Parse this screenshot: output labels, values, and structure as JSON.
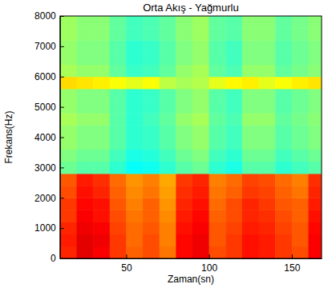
{
  "chart_data": {
    "type": "heatmap",
    "title": "Orta Akış - Yağmurlu",
    "x_label": "Zaman(sn)",
    "y_label": "Frekans(Hz)",
    "xlim": [
      10,
      168
    ],
    "xticks": [
      50,
      100,
      150
    ],
    "ylim": [
      0,
      8000
    ],
    "yticks": [
      0,
      1000,
      2000,
      3000,
      4000,
      5000,
      6000,
      7000,
      8000
    ],
    "x_edges": [
      10,
      20,
      30,
      40,
      50,
      60,
      70,
      80,
      90,
      100,
      110,
      120,
      130,
      140,
      150,
      160,
      168
    ],
    "y_edges": [
      0,
      400,
      800,
      1200,
      1600,
      2000,
      2400,
      2800,
      3200,
      3600,
      4000,
      4400,
      4800,
      5200,
      5600,
      6000,
      6400,
      6800,
      7200,
      7600,
      8000
    ],
    "zlim": [
      0,
      1
    ],
    "z": [
      [
        0.84,
        0.9,
        0.88,
        0.82,
        0.78,
        0.8,
        0.76,
        0.87,
        0.89,
        0.8,
        0.82,
        0.86,
        0.85,
        0.82,
        0.8,
        0.88
      ],
      [
        0.85,
        0.9,
        0.89,
        0.82,
        0.77,
        0.8,
        0.75,
        0.87,
        0.89,
        0.79,
        0.82,
        0.86,
        0.85,
        0.82,
        0.79,
        0.88
      ],
      [
        0.84,
        0.89,
        0.88,
        0.81,
        0.77,
        0.79,
        0.75,
        0.86,
        0.88,
        0.79,
        0.81,
        0.85,
        0.84,
        0.81,
        0.79,
        0.87
      ],
      [
        0.82,
        0.88,
        0.86,
        0.8,
        0.76,
        0.78,
        0.74,
        0.85,
        0.87,
        0.78,
        0.8,
        0.84,
        0.83,
        0.8,
        0.78,
        0.86
      ],
      [
        0.82,
        0.87,
        0.86,
        0.79,
        0.75,
        0.78,
        0.73,
        0.84,
        0.86,
        0.77,
        0.8,
        0.84,
        0.82,
        0.79,
        0.78,
        0.85
      ],
      [
        0.8,
        0.86,
        0.84,
        0.78,
        0.74,
        0.76,
        0.72,
        0.83,
        0.85,
        0.76,
        0.78,
        0.82,
        0.81,
        0.78,
        0.76,
        0.84
      ],
      [
        0.79,
        0.85,
        0.83,
        0.77,
        0.73,
        0.75,
        0.71,
        0.82,
        0.84,
        0.75,
        0.77,
        0.81,
        0.8,
        0.77,
        0.75,
        0.83
      ],
      [
        0.48,
        0.46,
        0.46,
        0.42,
        0.38,
        0.39,
        0.42,
        0.46,
        0.48,
        0.42,
        0.4,
        0.46,
        0.46,
        0.42,
        0.44,
        0.46
      ],
      [
        0.5,
        0.48,
        0.48,
        0.44,
        0.4,
        0.41,
        0.44,
        0.48,
        0.5,
        0.44,
        0.42,
        0.48,
        0.48,
        0.44,
        0.46,
        0.48
      ],
      [
        0.52,
        0.5,
        0.5,
        0.46,
        0.42,
        0.43,
        0.46,
        0.5,
        0.52,
        0.46,
        0.44,
        0.5,
        0.5,
        0.46,
        0.48,
        0.5
      ],
      [
        0.52,
        0.5,
        0.5,
        0.46,
        0.42,
        0.43,
        0.46,
        0.5,
        0.52,
        0.46,
        0.44,
        0.5,
        0.5,
        0.46,
        0.48,
        0.5
      ],
      [
        0.54,
        0.52,
        0.52,
        0.46,
        0.42,
        0.44,
        0.47,
        0.52,
        0.54,
        0.47,
        0.45,
        0.52,
        0.52,
        0.47,
        0.49,
        0.51
      ],
      [
        0.52,
        0.5,
        0.5,
        0.46,
        0.42,
        0.43,
        0.46,
        0.5,
        0.52,
        0.46,
        0.44,
        0.5,
        0.5,
        0.46,
        0.48,
        0.5
      ],
      [
        0.52,
        0.5,
        0.5,
        0.46,
        0.42,
        0.43,
        0.46,
        0.5,
        0.52,
        0.46,
        0.44,
        0.5,
        0.5,
        0.46,
        0.48,
        0.5
      ],
      [
        0.66,
        0.65,
        0.64,
        0.62,
        0.6,
        0.62,
        0.56,
        0.54,
        0.55,
        0.6,
        0.63,
        0.64,
        0.6,
        0.62,
        0.64,
        0.65
      ],
      [
        0.54,
        0.52,
        0.52,
        0.47,
        0.43,
        0.44,
        0.47,
        0.52,
        0.54,
        0.47,
        0.45,
        0.52,
        0.52,
        0.47,
        0.49,
        0.51
      ],
      [
        0.52,
        0.5,
        0.5,
        0.46,
        0.42,
        0.43,
        0.46,
        0.5,
        0.52,
        0.46,
        0.44,
        0.5,
        0.5,
        0.46,
        0.48,
        0.5
      ],
      [
        0.52,
        0.5,
        0.5,
        0.46,
        0.42,
        0.43,
        0.46,
        0.5,
        0.52,
        0.46,
        0.44,
        0.5,
        0.5,
        0.46,
        0.48,
        0.5
      ],
      [
        0.53,
        0.51,
        0.51,
        0.47,
        0.44,
        0.45,
        0.47,
        0.51,
        0.53,
        0.47,
        0.46,
        0.51,
        0.51,
        0.47,
        0.49,
        0.51
      ],
      [
        0.53,
        0.51,
        0.51,
        0.47,
        0.44,
        0.45,
        0.47,
        0.51,
        0.53,
        0.47,
        0.46,
        0.51,
        0.51,
        0.47,
        0.49,
        0.51
      ]
    ]
  }
}
